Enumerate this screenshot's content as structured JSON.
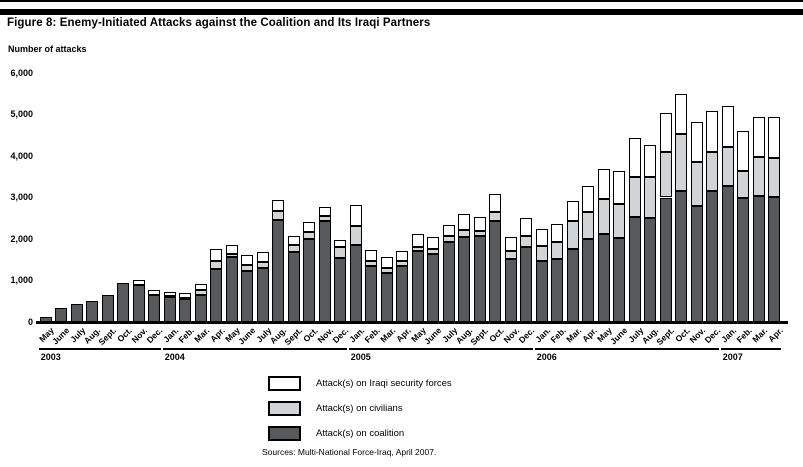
{
  "header": {
    "title": "Figure 8: Enemy-Initiated Attacks against the Coalition and Its Iraqi Partners"
  },
  "chart_data": {
    "type": "bar",
    "stacked": true,
    "grid": false,
    "legend_position": "bottom-center",
    "title": "Figure 8: Enemy-Initiated Attacks against the Coalition and Its Iraqi Partners",
    "ylabel_caption": "Number of attacks",
    "ylim": [
      0,
      6000
    ],
    "y_ticks": [
      {
        "value": 0,
        "label": "0"
      },
      {
        "value": 1000,
        "label": "1,000"
      },
      {
        "value": 2000,
        "label": "2,000"
      },
      {
        "value": 3000,
        "label": "3,000"
      },
      {
        "value": 4000,
        "label": "4,000"
      },
      {
        "value": 5000,
        "label": "5,000"
      },
      {
        "value": 6000,
        "label": "6,000"
      }
    ],
    "categories": [
      "May",
      "June",
      "July",
      "Aug.",
      "Sept.",
      "Oct.",
      "Nov.",
      "Dec.",
      "Jan.",
      "Feb.",
      "Mar.",
      "Apr.",
      "May",
      "June",
      "July",
      "Aug.",
      "Sept.",
      "Oct.",
      "Nov.",
      "Dec.",
      "Jan.",
      "Feb.",
      "Mar.",
      "Apr.",
      "May",
      "June",
      "July",
      "Aug.",
      "Sept.",
      "Oct.",
      "Nov.",
      "Dec.",
      "Jan.",
      "Feb.",
      "Mar.",
      "Apr.",
      "May",
      "June",
      "July",
      "Aug.",
      "Sept.",
      "Oct.",
      "Nov.",
      "Dec.",
      "Jan.",
      "Feb.",
      "Mar.",
      "Apr."
    ],
    "year_groups": [
      {
        "label": "2003",
        "start": 0,
        "count": 8
      },
      {
        "label": "2004",
        "start": 8,
        "count": 12
      },
      {
        "label": "2005",
        "start": 20,
        "count": 12
      },
      {
        "label": "2006",
        "start": 32,
        "count": 12
      },
      {
        "label": "2007",
        "start": 44,
        "count": 4
      }
    ],
    "series": [
      {
        "name": "Attack(s) on coalition",
        "color": "#58595b",
        "values": [
          120,
          340,
          440,
          500,
          640,
          950,
          890,
          660,
          600,
          580,
          640,
          1280,
          1560,
          1240,
          1300,
          2460,
          1680,
          2000,
          2425,
          1545,
          1860,
          1345,
          1185,
          1345,
          1720,
          1640,
          1920,
          2060,
          2080,
          2445,
          1520,
          1800,
          1460,
          1510,
          1760,
          2000,
          2125,
          2025,
          2540,
          2510,
          3000,
          3165,
          2805,
          3165,
          3285,
          2980,
          3045,
          3020
        ]
      },
      {
        "name": "Attack(s) on civilians",
        "color": "#d1d3d4",
        "values": [
          0,
          0,
          0,
          0,
          0,
          0,
          0,
          0,
          20,
          10,
          120,
          200,
          80,
          145,
          135,
          225,
          185,
          160,
          135,
          255,
          465,
          135,
          110,
          135,
          95,
          120,
          160,
          145,
          120,
          200,
          200,
          280,
          360,
          415,
          680,
          640,
          845,
          820,
          945,
          975,
          1105,
          1365,
          1040,
          920,
          920,
          665,
          920,
          920
        ]
      },
      {
        "name": "Attack(s) on Iraqi security forces",
        "color": "#ffffff",
        "values": [
          0,
          0,
          0,
          0,
          0,
          0,
          125,
          100,
          100,
          100,
          160,
          280,
          225,
          240,
          240,
          265,
          215,
          240,
          200,
          180,
          500,
          265,
          265,
          240,
          305,
          280,
          265,
          400,
          320,
          440,
          335,
          425,
          420,
          440,
          480,
          645,
          720,
          800,
          950,
          780,
          940,
          975,
          965,
          1005,
          1005,
          965,
          980,
          1005
        ]
      }
    ],
    "legend": [
      {
        "label": "Attack(s) on Iraqi security forces",
        "color": "#ffffff"
      },
      {
        "label": "Attack(s) on civilians",
        "color": "#d1d3d4"
      },
      {
        "label": "Attack(s) on coalition",
        "color": "#58595b"
      }
    ],
    "source": "Sources: Multi-National Force-Iraq, April 2007."
  }
}
